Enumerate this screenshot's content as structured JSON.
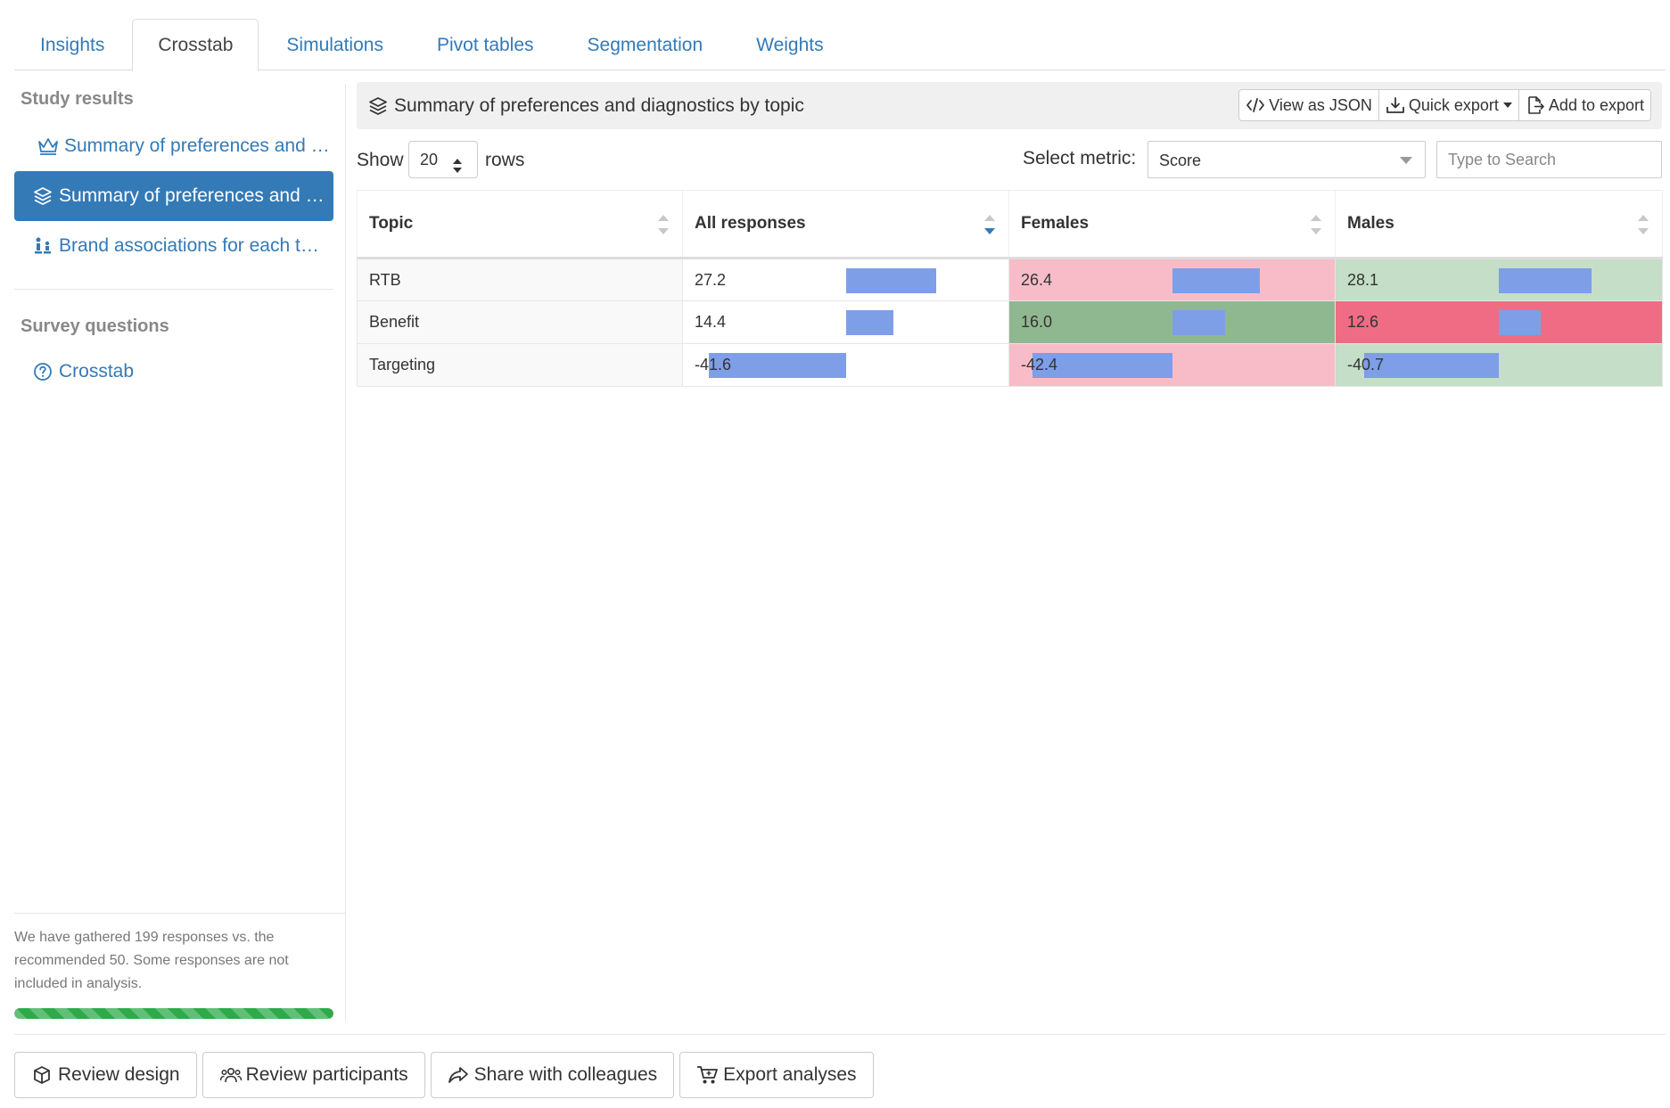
{
  "tabs": [
    {
      "label": "Insights",
      "active": false
    },
    {
      "label": "Crosstab",
      "active": true
    },
    {
      "label": "Simulations",
      "active": false
    },
    {
      "label": "Pivot tables",
      "active": false
    },
    {
      "label": "Segmentation",
      "active": false
    },
    {
      "label": "Weights",
      "active": false
    }
  ],
  "sidebar": {
    "study_heading": "Study results",
    "study_items": [
      {
        "label": "Summary of preferences and diagnostics",
        "icon": "crown-icon"
      },
      {
        "label": "Summary of preferences and diagnostics by topic",
        "icon": "layers-icon",
        "active": true
      },
      {
        "label": "Brand associations for each topic",
        "icon": "people-icon"
      }
    ],
    "survey_heading": "Survey questions",
    "survey_items": [
      {
        "label": "Crosstab",
        "icon": "question-circle-icon"
      }
    ],
    "footer_message": "We have gathered 199 responses vs. the recommended 50. Some responses are not included in analysis.",
    "progress_percent": 100,
    "progress_color": "#2eaa4a"
  },
  "panel": {
    "title": "Summary of preferences and diagnostics by topic",
    "buttons": {
      "view_json": "View as JSON",
      "quick_export": "Quick export",
      "add_export": "Add to export"
    }
  },
  "controls": {
    "show_label": "Show",
    "rows_value": "20",
    "rows_label": "rows",
    "metric_label": "Select metric:",
    "metric_value": "Score",
    "search_placeholder": "Type to Search"
  },
  "table": {
    "columns": [
      "Topic",
      "All responses",
      "Females",
      "Males"
    ],
    "sorted_column": 1,
    "sort_direction": "desc",
    "rows": [
      {
        "topic": "RTB",
        "cells": [
          {
            "value": "27.2",
            "num": 27.2,
            "bg": ""
          },
          {
            "value": "26.4",
            "num": 26.4,
            "bg": "bg-pink"
          },
          {
            "value": "28.1",
            "num": 28.1,
            "bg": "bg-lgreen"
          }
        ]
      },
      {
        "topic": "Benefit",
        "cells": [
          {
            "value": "14.4",
            "num": 14.4,
            "bg": ""
          },
          {
            "value": "16.0",
            "num": 16.0,
            "bg": "bg-green"
          },
          {
            "value": "12.6",
            "num": 12.6,
            "bg": "bg-red"
          }
        ]
      },
      {
        "topic": "Targeting",
        "cells": [
          {
            "value": "-41.6",
            "num": -41.6,
            "bg": ""
          },
          {
            "value": "-42.4",
            "num": -42.4,
            "bg": "bg-pink"
          },
          {
            "value": "-40.7",
            "num": -40.7,
            "bg": "bg-lgreen"
          }
        ]
      }
    ],
    "bar_color": "#7e9ee8"
  },
  "bottom": {
    "review_design": "Review design",
    "review_participants": "Review participants",
    "share": "Share with colleagues",
    "export": "Export analyses"
  }
}
